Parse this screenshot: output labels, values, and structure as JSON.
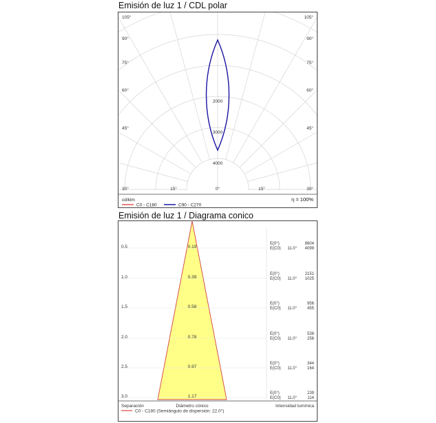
{
  "polar": {
    "title": "Emisión de luz 1 / CDL polar",
    "unit": "cd/klm",
    "efficiency": "η = 100%",
    "angle_labels_left": [
      "105°",
      "90°",
      "75°",
      "60°",
      "45°",
      "30°"
    ],
    "angle_labels_right": [
      "105°",
      "90°",
      "75°",
      "60°",
      "45°",
      "30°"
    ],
    "bottom_labels": [
      "15°",
      "0°",
      "15°"
    ],
    "radial_labels": [
      "2000",
      "3000",
      "4000"
    ],
    "legend": [
      {
        "label": "C0 - C180",
        "color": "#e03030"
      },
      {
        "label": "C90 - C270",
        "color": "#1a1aa8"
      }
    ],
    "chart_data": {
      "type": "polar",
      "radial_ticks": [
        2000,
        3000,
        4000
      ],
      "max_intensity": 8600,
      "series": [
        {
          "name": "C0 - C180",
          "points": [
            [
              0,
              8600
            ],
            [
              5,
              7700
            ],
            [
              10,
              5300
            ],
            [
              15,
              2300
            ],
            [
              20,
              500
            ],
            [
              25,
              0
            ]
          ]
        },
        {
          "name": "C90 - C270",
          "points": [
            [
              0,
              8600
            ],
            [
              5,
              7700
            ],
            [
              10,
              5300
            ],
            [
              15,
              2300
            ],
            [
              20,
              500
            ],
            [
              25,
              0
            ]
          ]
        }
      ]
    }
  },
  "cone": {
    "title": "Emisión de luz 1 / Diagrama conico",
    "footer_labels": {
      "separation": "Separación",
      "diameter": "Diámetro cónico",
      "intensity": "Intensidad lumínica"
    },
    "legend": {
      "label": "C0 - C180 (Semiángulo de dispersión: 22.0°)",
      "color": "#e03030"
    },
    "half_angle": 22.0,
    "e0_label": "E(0°)",
    "ec0_label": "E(C0)",
    "angle_text": "11.0°",
    "rows": [
      {
        "separation": "0.5",
        "diameter": "0.19",
        "e0": "8604",
        "ec0": "4099"
      },
      {
        "separation": "1.0",
        "diameter": "0.39",
        "e0": "2151",
        "ec0": "1025"
      },
      {
        "separation": "1.5",
        "diameter": "0.58",
        "e0": "956",
        "ec0": "455"
      },
      {
        "separation": "2.0",
        "diameter": "0.78",
        "e0": "538",
        "ec0": "256"
      },
      {
        "separation": "2.5",
        "diameter": "0.97",
        "e0": "344",
        "ec0": "164"
      },
      {
        "separation": "3.0",
        "diameter": "1.17",
        "e0": "239",
        "ec0": "114"
      }
    ]
  }
}
